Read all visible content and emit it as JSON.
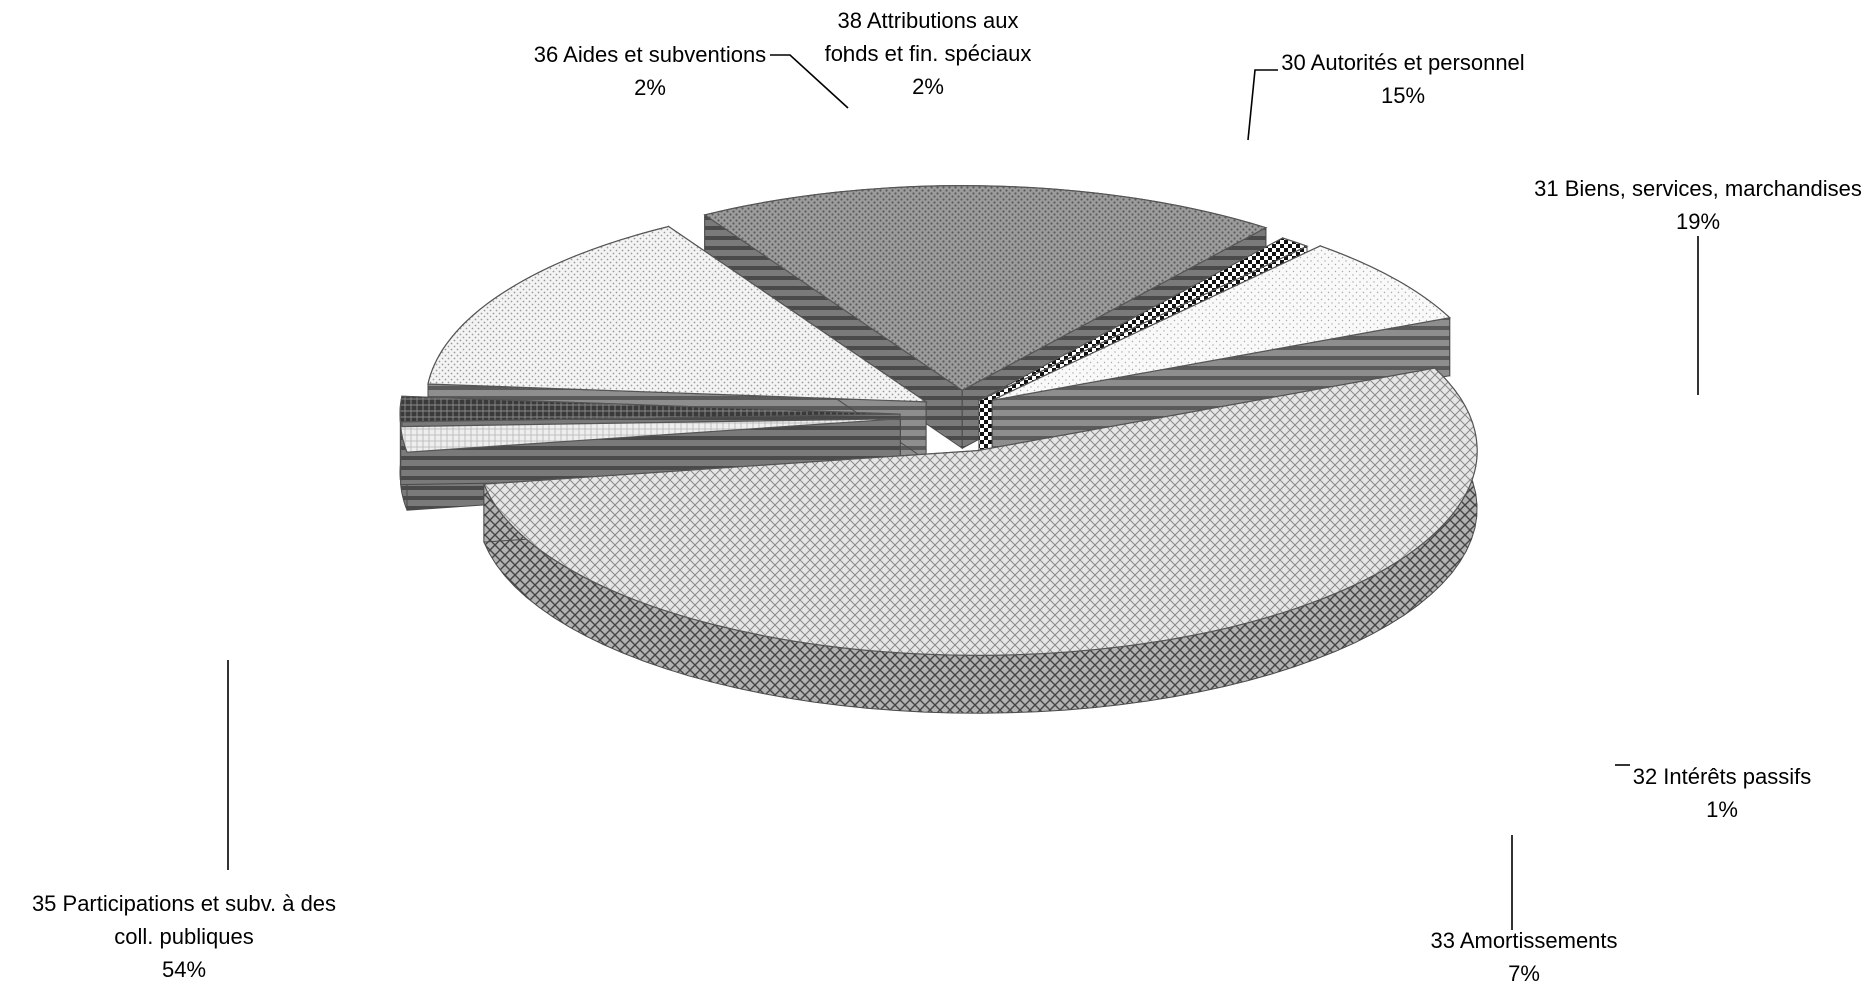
{
  "chart_data": {
    "type": "pie",
    "title": "",
    "exploded": true,
    "three_d": true,
    "legend": "none",
    "slices": [
      {
        "name": "30 Autorités et personnel",
        "value": 15,
        "label": "15%",
        "fill": "#f2f2f2",
        "side": "#8c8c8c"
      },
      {
        "name": "31 Biens, services, marchandises",
        "value": 19,
        "label": "19%",
        "fill": "#9a9a9a",
        "side": "#4a4a4a"
      },
      {
        "name": "32 Intérêts passifs",
        "value": 1,
        "label": "1%",
        "fill": "#1a1a1a",
        "side": "#000000"
      },
      {
        "name": "33 Amortissements",
        "value": 7,
        "label": "7%",
        "fill": "#f7f7f7",
        "side": "#6e6e6e"
      },
      {
        "name": "35 Participations et subv. à des coll. publiques",
        "value": 54,
        "label": "54%",
        "fill": "#e4e4e4",
        "side": "#8a8a8a"
      },
      {
        "name": "36 Aides et subventions",
        "value": 2,
        "label": "2%",
        "fill": "#ededed",
        "side": "#5e5e5e"
      },
      {
        "name": "38 Attributions aux fonds et fin. spéciaux",
        "value": 2,
        "label": "2%",
        "fill": "#555555",
        "side": "#2a2a2a"
      }
    ],
    "label_lines": [
      {
        "line1": "30 Autorités et personnel",
        "line2": "15%"
      },
      {
        "line1": "31 Biens, services, marchandises",
        "line2": "19%"
      },
      {
        "line1": "32 Intérêts passifs",
        "line2": "1%"
      },
      {
        "line1": "33 Amortissements",
        "line2": "7%"
      },
      {
        "line1": "35 Participations et subv. à des",
        "line2": "coll. publiques",
        "line3": "54%"
      },
      {
        "line1": "36 Aides et subventions",
        "line2": "2%"
      },
      {
        "line1": "38 Attributions aux",
        "line2": "fonds et fin. spéciaux",
        "line3": "2%"
      }
    ]
  }
}
